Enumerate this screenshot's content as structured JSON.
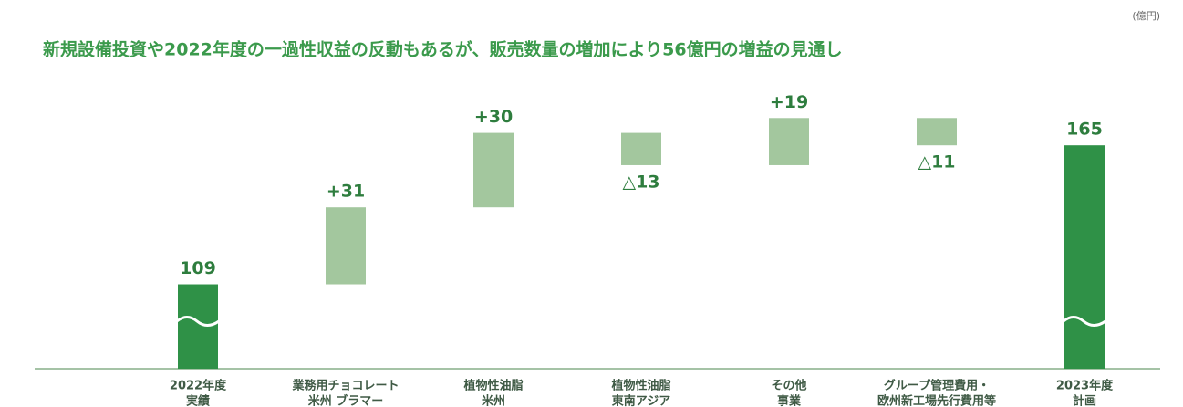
{
  "unit_label": "(億円)",
  "chart_data": {
    "type": "waterfall",
    "title": "新規設備投資や2022年度の一過性収益の反動もあるが、販売数量の増加により56億円の増益の見通し",
    "categories": [
      [
        "2022年度",
        "実績"
      ],
      [
        "業務用チョコレート",
        "米州 ブラマー"
      ],
      [
        "植物性油脂",
        "米州"
      ],
      [
        "植物性油脂",
        "東南アジア"
      ],
      [
        "その他",
        "事業"
      ],
      [
        "グループ管理費用・",
        "欧州新工場先行費用等"
      ],
      [
        "2023年度",
        "計画"
      ]
    ],
    "values": [
      109,
      31,
      30,
      -13,
      19,
      -11,
      165
    ],
    "value_labels": [
      "109",
      "+31",
      "+30",
      "△13",
      "+19",
      "△11",
      "165"
    ],
    "measure": [
      "absolute",
      "relative",
      "relative",
      "relative",
      "relative",
      "relative",
      "absolute"
    ],
    "colors": [
      "#2f9147",
      "#a3c79e",
      "#a3c79e",
      "#a3c79e",
      "#a3c79e",
      "#a3c79e",
      "#2f9147"
    ],
    "axis_break": true,
    "ylim": [
      75,
      200
    ]
  }
}
